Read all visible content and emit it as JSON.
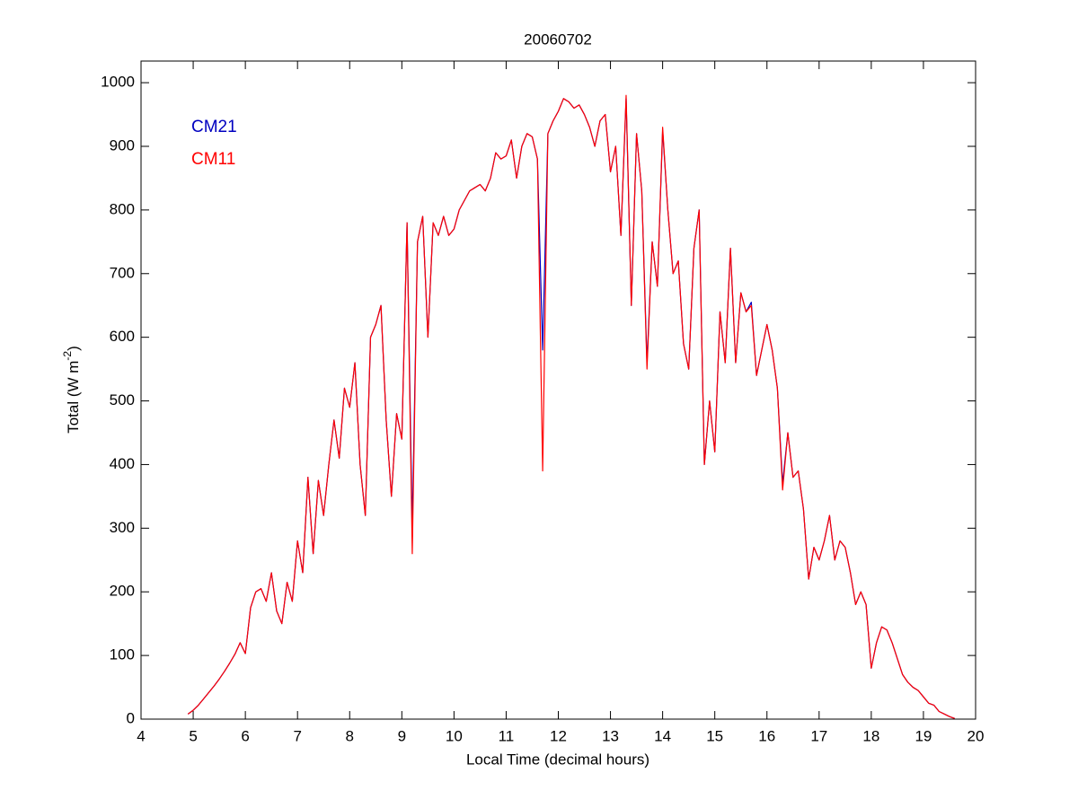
{
  "chart_data": {
    "type": "line",
    "title": "20060702",
    "xlabel": "Local Time (decimal hours)",
    "ylabel": [
      "Total (W m",
      "-2",
      ")"
    ],
    "x": [
      4.9,
      5,
      5.1,
      5.2,
      5.3,
      5.4,
      5.5,
      5.6,
      5.7,
      5.8,
      5.9,
      6,
      6.1,
      6.2,
      6.3,
      6.4,
      6.5,
      6.6,
      6.7,
      6.8,
      6.9,
      7,
      7.1,
      7.2,
      7.3,
      7.4,
      7.5,
      7.6,
      7.7,
      7.8,
      7.9,
      8,
      8.1,
      8.2,
      8.3,
      8.4,
      8.5,
      8.6,
      8.7,
      8.8,
      8.9,
      9,
      9.1,
      9.2,
      9.3,
      9.4,
      9.5,
      9.6,
      9.7,
      9.8,
      9.9,
      10,
      10.1,
      10.2,
      10.3,
      10.4,
      10.5,
      10.6,
      10.7,
      10.8,
      10.9,
      11,
      11.1,
      11.2,
      11.3,
      11.4,
      11.5,
      11.6,
      11.7,
      11.8,
      11.9,
      12,
      12.1,
      12.2,
      12.3,
      12.4,
      12.5,
      12.6,
      12.7,
      12.8,
      12.9,
      13,
      13.1,
      13.2,
      13.3,
      13.4,
      13.5,
      13.6,
      13.7,
      13.8,
      13.9,
      14,
      14.1,
      14.2,
      14.3,
      14.4,
      14.5,
      14.6,
      14.7,
      14.8,
      14.9,
      15,
      15.1,
      15.2,
      15.3,
      15.4,
      15.5,
      15.6,
      15.7,
      15.8,
      15.9,
      16,
      16.1,
      16.2,
      16.3,
      16.4,
      16.5,
      16.6,
      16.7,
      16.8,
      16.9,
      17,
      17.1,
      17.2,
      17.3,
      17.4,
      17.5,
      17.6,
      17.7,
      17.8,
      17.9,
      18,
      18.1,
      18.2,
      18.3,
      18.4,
      18.5,
      18.6,
      18.7,
      18.8,
      18.9,
      19,
      19.1,
      19.2,
      19.3,
      19.4,
      19.5,
      19.6
    ],
    "series": [
      {
        "name": "CM21",
        "color": "#0000c0",
        "values": [
          8,
          14,
          22,
          32,
          42,
          52,
          63,
          75,
          88,
          102,
          120,
          103,
          175,
          200,
          205,
          185,
          230,
          170,
          150,
          215,
          185,
          280,
          230,
          380,
          260,
          375,
          320,
          400,
          470,
          410,
          520,
          490,
          560,
          400,
          320,
          600,
          620,
          650,
          470,
          350,
          480,
          440,
          780,
          300,
          750,
          790,
          600,
          780,
          760,
          790,
          760,
          770,
          800,
          815,
          830,
          835,
          840,
          830,
          850,
          890,
          880,
          885,
          910,
          850,
          900,
          920,
          915,
          880,
          580,
          920,
          940,
          955,
          975,
          970,
          960,
          965,
          950,
          930,
          900,
          940,
          950,
          860,
          900,
          760,
          975,
          650,
          920,
          830,
          560,
          750,
          680,
          925,
          800,
          700,
          720,
          590,
          550,
          740,
          800,
          400,
          500,
          420,
          640,
          560,
          740,
          560,
          670,
          640,
          655,
          540,
          580,
          620,
          580,
          520,
          370,
          450,
          380,
          390,
          330,
          220,
          270,
          250,
          280,
          320,
          250,
          280,
          270,
          230,
          180,
          200,
          180,
          80,
          120,
          145,
          140,
          120,
          95,
          70,
          58,
          50,
          45,
          35,
          25,
          22,
          12,
          8,
          4,
          1
        ]
      },
      {
        "name": "CM11",
        "color": "#ff0000",
        "values": [
          8,
          14,
          22,
          32,
          42,
          52,
          63,
          75,
          88,
          102,
          120,
          103,
          175,
          200,
          205,
          185,
          230,
          170,
          150,
          215,
          185,
          280,
          230,
          380,
          260,
          375,
          320,
          400,
          470,
          410,
          520,
          490,
          560,
          400,
          320,
          600,
          620,
          650,
          470,
          350,
          480,
          440,
          780,
          260,
          750,
          790,
          600,
          780,
          760,
          790,
          760,
          770,
          800,
          815,
          830,
          835,
          840,
          830,
          850,
          890,
          880,
          885,
          910,
          850,
          900,
          920,
          915,
          880,
          390,
          920,
          940,
          955,
          975,
          970,
          960,
          965,
          950,
          930,
          900,
          940,
          950,
          860,
          900,
          760,
          980,
          650,
          920,
          830,
          550,
          750,
          680,
          930,
          800,
          700,
          720,
          590,
          550,
          740,
          800,
          400,
          500,
          420,
          640,
          560,
          740,
          560,
          670,
          640,
          650,
          540,
          580,
          620,
          580,
          520,
          360,
          450,
          380,
          390,
          330,
          220,
          270,
          250,
          280,
          320,
          250,
          280,
          270,
          230,
          180,
          200,
          180,
          80,
          120,
          145,
          140,
          120,
          95,
          70,
          58,
          50,
          45,
          35,
          25,
          22,
          12,
          8,
          4,
          1
        ]
      }
    ],
    "xlim": [
      4,
      20
    ],
    "xticks": [
      4,
      5,
      6,
      7,
      8,
      9,
      10,
      11,
      12,
      13,
      14,
      15,
      16,
      17,
      18,
      19,
      20
    ],
    "ylim": [
      0,
      1034
    ],
    "yticks": [
      0,
      100,
      200,
      300,
      400,
      500,
      600,
      700,
      800,
      900,
      1000
    ],
    "grid": false,
    "legend": "upper left"
  }
}
